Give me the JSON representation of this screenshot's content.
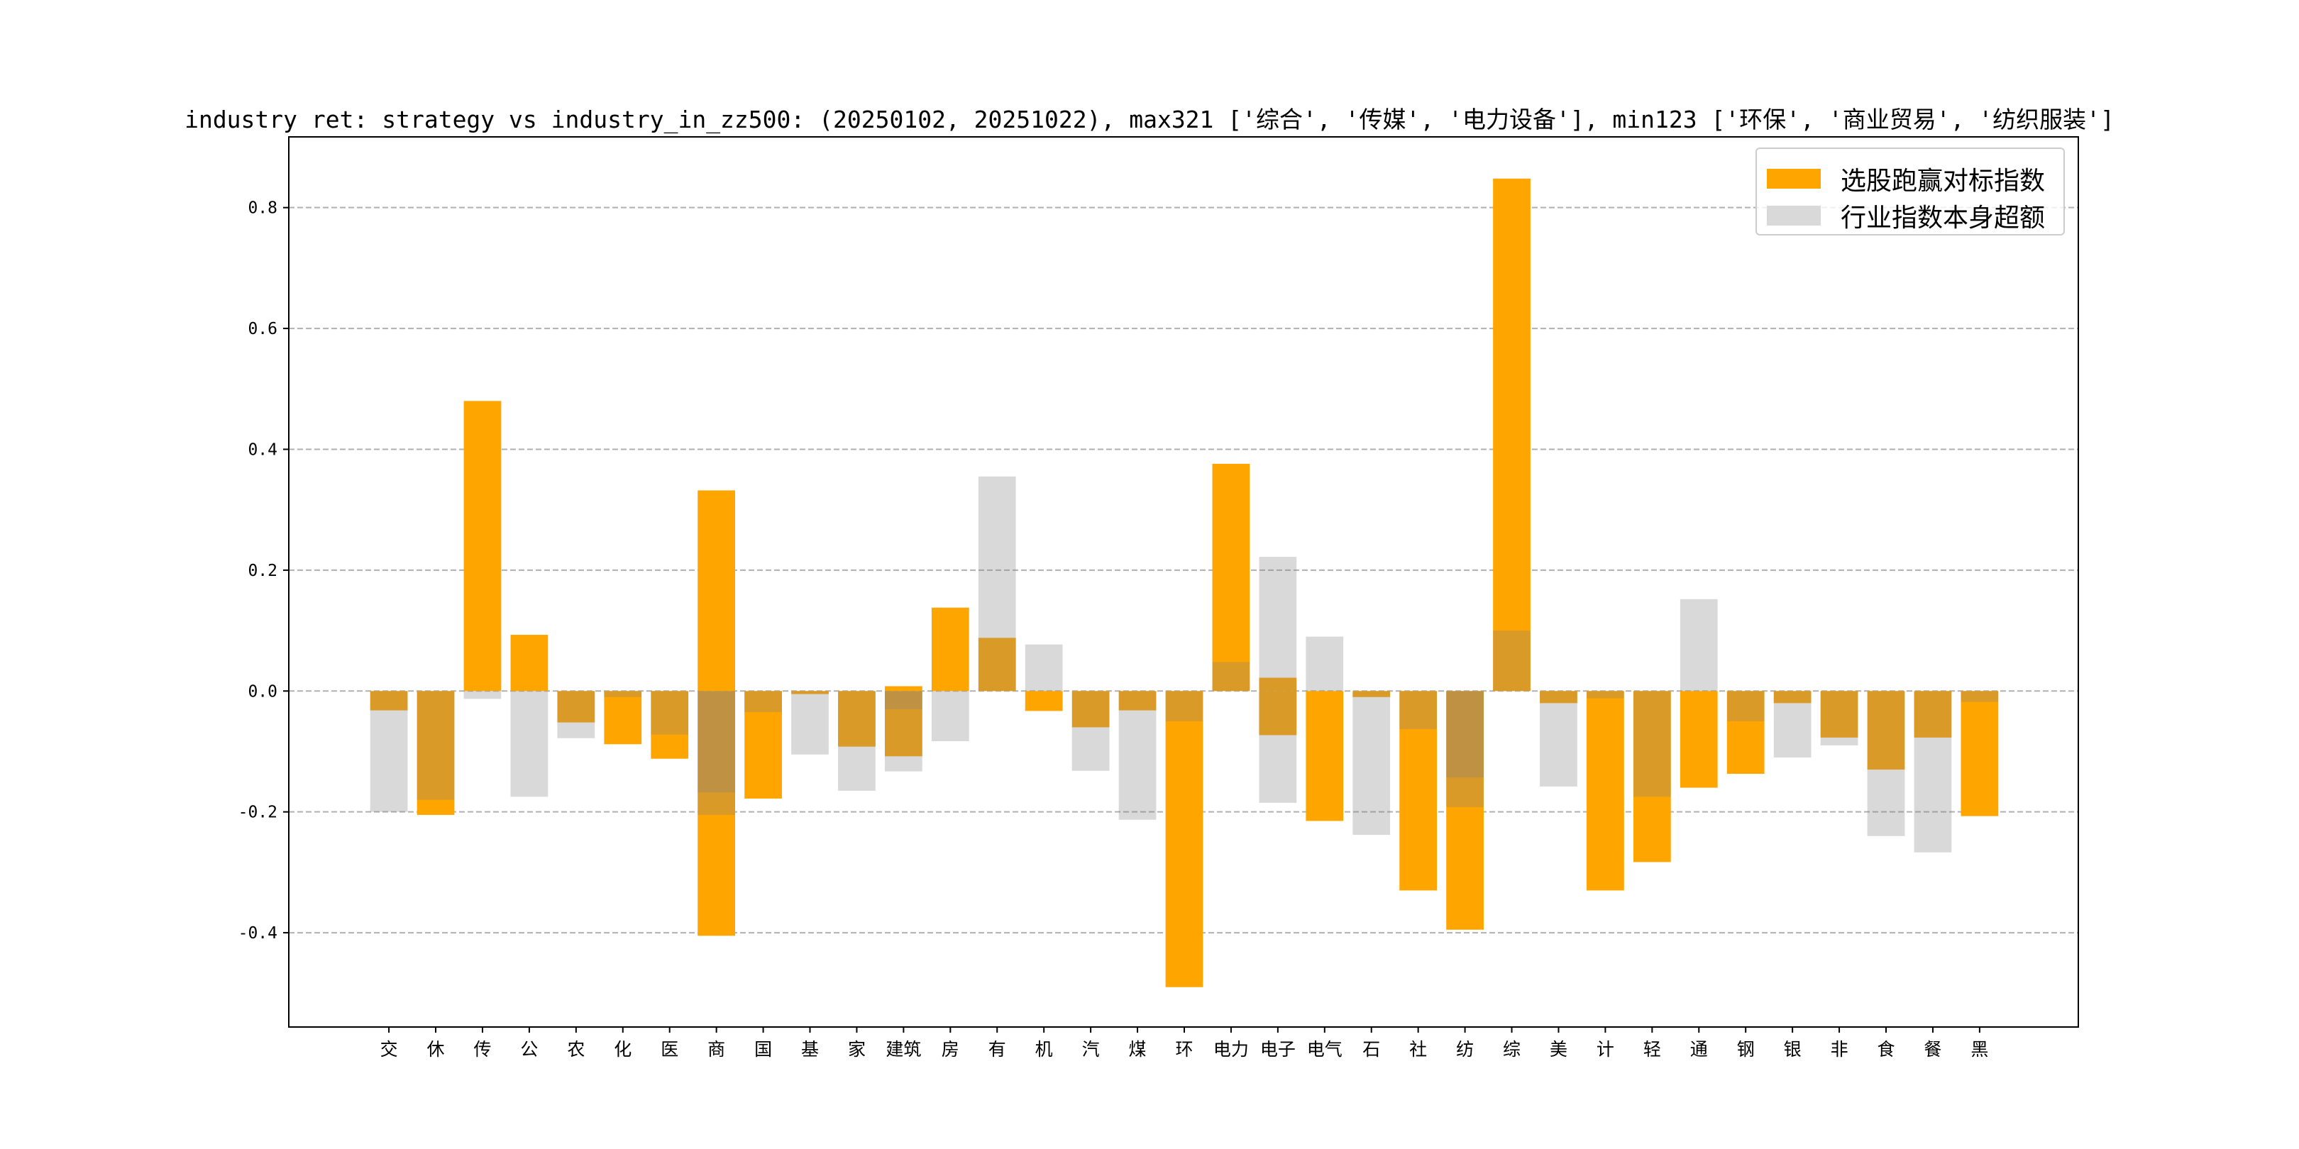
{
  "chart_data": {
    "type": "bar",
    "title": "industry ret: strategy vs industry_in_zz500: (20250102, 20251022), max321 ['综合', '传媒', '电力设备'], min123 ['环保', '商业贸易', '纺织服装']",
    "xlabel": "",
    "ylabel": "",
    "ylim": [
      -0.556,
      0.917
    ],
    "yticks": [
      -0.4,
      -0.2,
      0.0,
      0.2,
      0.4,
      0.6,
      0.8
    ],
    "ytick_labels": [
      "-0.4",
      "-0.2",
      "0.0",
      "0.2",
      "0.4",
      "0.6",
      "0.8"
    ],
    "grid": "y-dashed",
    "legend_position": "top-right",
    "categories": [
      "交",
      "休",
      "传",
      "公",
      "农",
      "化",
      "医",
      "商",
      "国",
      "基",
      "家",
      "建筑",
      "房",
      "有",
      "机",
      "汽",
      "煤",
      "环",
      "电力",
      "电子",
      "电气",
      "石",
      "社",
      "纺",
      "综",
      "美",
      "计",
      "轻",
      "通",
      "钢",
      "银",
      "非",
      "食",
      "餐",
      "黑"
    ],
    "series": [
      {
        "name": "选股跑赢对标指数",
        "color": "#FFA500",
        "values": [
          [
            -0.032
          ],
          [
            -0.205
          ],
          [
            0.48
          ],
          [
            0.093
          ],
          [
            -0.052
          ],
          [
            -0.088
          ],
          [
            -0.112
          ],
          [
            0.332,
            -0.405
          ],
          [
            -0.178
          ],
          [
            -0.005
          ],
          [
            -0.092
          ],
          [
            0.008,
            -0.108
          ],
          [
            0.138
          ],
          [
            0.088
          ],
          [
            -0.033
          ],
          [
            -0.06
          ],
          [
            -0.032
          ],
          [
            -0.49
          ],
          [
            0.376
          ],
          [
            0.022,
            -0.073
          ],
          [
            -0.215
          ],
          [
            -0.01
          ],
          [
            -0.33
          ],
          [
            -0.395
          ],
          [
            0.848
          ],
          [
            -0.02
          ],
          [
            -0.33
          ],
          [
            -0.283
          ],
          [
            -0.16
          ],
          [
            -0.137
          ],
          [
            -0.02
          ],
          [
            -0.077
          ],
          [
            -0.13
          ],
          [
            -0.077
          ],
          [
            -0.207
          ]
        ]
      },
      {
        "name": "行业指数本身超额",
        "color": "#808080",
        "values": [
          [
            -0.2
          ],
          [
            -0.18
          ],
          [
            -0.013
          ],
          [
            -0.175
          ],
          [
            -0.078
          ],
          [
            -0.01
          ],
          [
            -0.072
          ],
          [
            -0.168,
            -0.205
          ],
          [
            -0.035
          ],
          [
            -0.105
          ],
          [
            -0.165
          ],
          [
            -0.03,
            -0.133
          ],
          [
            -0.083
          ],
          [
            0.355
          ],
          [
            0.077
          ],
          [
            -0.132
          ],
          [
            -0.213
          ],
          [
            -0.05
          ],
          [
            0.048
          ],
          [
            0.222,
            -0.185
          ],
          [
            0.09
          ],
          [
            -0.238
          ],
          [
            -0.063
          ],
          [
            -0.143,
            -0.192
          ],
          [
            0.1
          ],
          [
            -0.158
          ],
          [
            -0.012
          ],
          [
            -0.175
          ],
          [
            0.152
          ],
          [
            -0.05
          ],
          [
            -0.11
          ],
          [
            -0.09
          ],
          [
            -0.24
          ],
          [
            -0.267
          ],
          [
            -0.018
          ]
        ]
      }
    ]
  }
}
